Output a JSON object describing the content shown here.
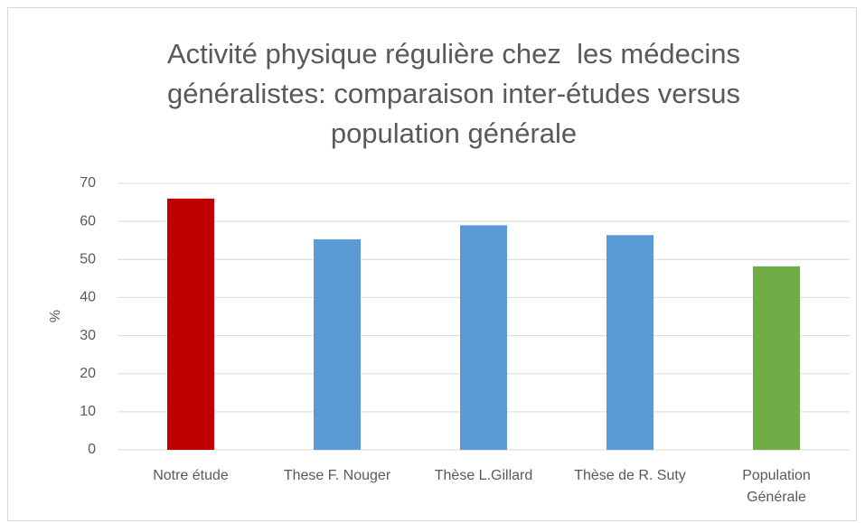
{
  "chart_data": {
    "type": "bar",
    "title": "Activité physique régulière chez  les médecins généralistes: comparaison inter-études versus population générale",
    "y_label": "%",
    "categories": [
      "Notre étude",
      "These F. Nouger",
      "Thèse L.Gillard",
      "Thèse de R. Suty",
      "Population Générale"
    ],
    "values": [
      66,
      55.3,
      59,
      56.4,
      48.2
    ],
    "colors": [
      "#c00000",
      "#5b9bd5",
      "#5b9bd5",
      "#5b9bd5",
      "#70ad47"
    ],
    "ylim": [
      0,
      70
    ],
    "yticks": [
      0,
      10,
      20,
      30,
      40,
      50,
      60,
      70
    ],
    "grid": true
  }
}
